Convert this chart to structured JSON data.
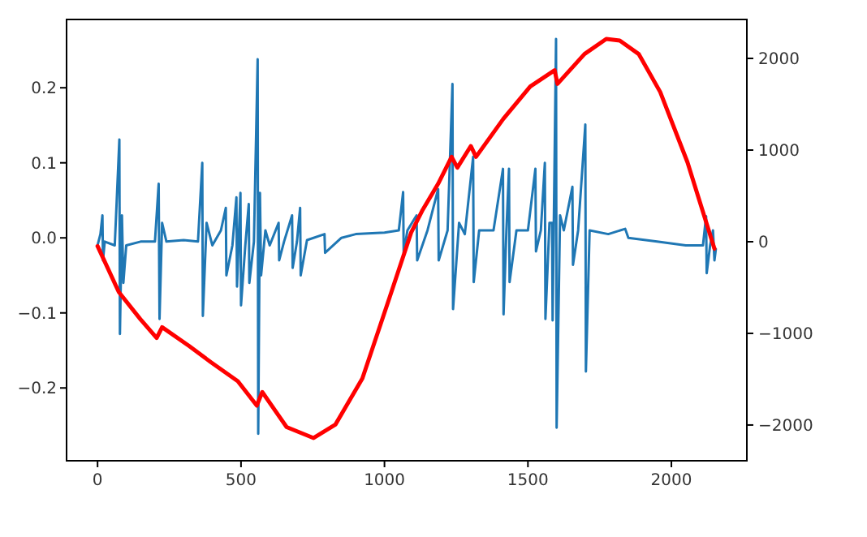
{
  "chart_data": {
    "type": "line",
    "xlim": [
      -108,
      2263
    ],
    "ylim": [
      -0.297,
      0.291
    ],
    "y2lim": [
      -2390,
      2425
    ],
    "xticks": [
      0,
      500,
      1000,
      1500,
      2000
    ],
    "yticks": [
      {
        "value": -0.2,
        "label": "−0.2"
      },
      {
        "value": -0.1,
        "label": "−0.1"
      },
      {
        "value": 0,
        "label": "0.0"
      },
      0.1,
      0.2
    ],
    "y2ticks": [
      {
        "value": -2000,
        "label": "−2000"
      },
      {
        "value": -1000,
        "label": "−1000"
      },
      0,
      1000,
      2000
    ],
    "series": [
      {
        "color": "#1f77b4",
        "axis": "y",
        "x": [
          0,
          10,
          17,
          19,
          25,
          60,
          76,
          78,
          85,
          90,
          100,
          150,
          200,
          213,
          216,
          225,
          240,
          300,
          350,
          365,
          367,
          380,
          400,
          430,
          447,
          449,
          470,
          484,
          486,
          498,
          500,
          515,
          527,
          529,
          545,
          558,
          560,
          566,
          570,
          585,
          600,
          631,
          633,
          650,
          678,
          680,
          695,
          706,
          708,
          730,
          791,
          793,
          850,
          900,
          1000,
          1050,
          1065,
          1067,
          1080,
          1112,
          1114,
          1150,
          1187,
          1189,
          1220,
          1237,
          1239,
          1260,
          1280,
          1309,
          1311,
          1330,
          1380,
          1413,
          1415,
          1425,
          1434,
          1436,
          1460,
          1500,
          1526,
          1528,
          1545,
          1559,
          1561,
          1575,
          1584,
          1586,
          1598,
          1600,
          1612,
          1625,
          1655,
          1657,
          1675,
          1700,
          1702,
          1715,
          1780,
          1839,
          1850,
          1950,
          2050,
          2110,
          2121,
          2123,
          2135,
          2145,
          2150,
          2155
        ],
        "values": [
          -0.01,
          0.005,
          0.03,
          -0.03,
          -0.005,
          -0.01,
          0.131,
          -0.128,
          0.03,
          -0.06,
          -0.01,
          -0.005,
          -0.005,
          0.072,
          -0.108,
          0.02,
          -0.005,
          -0.003,
          -0.005,
          0.1,
          -0.104,
          0.02,
          -0.01,
          0.01,
          0.04,
          -0.05,
          -0.01,
          0.054,
          -0.065,
          0.06,
          -0.09,
          -0.01,
          0.045,
          -0.06,
          -0.005,
          0.238,
          -0.261,
          0.06,
          -0.05,
          0.01,
          -0.01,
          0.02,
          -0.03,
          -0.005,
          0.03,
          -0.04,
          -0.005,
          0.04,
          -0.05,
          -0.003,
          0.005,
          -0.02,
          0,
          0.005,
          0.007,
          0.01,
          0.061,
          -0.02,
          0.01,
          0.03,
          -0.03,
          0.01,
          0.065,
          -0.03,
          0.01,
          0.205,
          -0.095,
          0.02,
          0.005,
          0.108,
          -0.059,
          0.01,
          0.01,
          0.092,
          -0.102,
          0.01,
          0.092,
          -0.059,
          0.01,
          0.01,
          0.092,
          -0.018,
          0.01,
          0.1,
          -0.108,
          0.02,
          0.02,
          -0.11,
          0.265,
          -0.253,
          0.03,
          0.01,
          0.068,
          -0.036,
          0.01,
          0.151,
          -0.178,
          0.01,
          0.005,
          0.012,
          0,
          -0.005,
          -0.01,
          -0.01,
          0.029,
          -0.047,
          -0.01,
          0.01,
          -0.03,
          -0.015
        ]
      },
      {
        "color": "#ff0000",
        "axis": "y2",
        "x": [
          0,
          74,
          149,
          206,
          225,
          319,
          395,
          489,
          555,
          574,
          659,
          753,
          829,
          923,
          1018,
          1093,
          1131,
          1187,
          1234,
          1254,
          1301,
          1319,
          1414,
          1508,
          1593,
          1603,
          1697,
          1773,
          1820,
          1886,
          1961,
          2056,
          2150
        ],
        "values": [
          -48,
          -549,
          -844,
          -1050,
          -933,
          -1138,
          -1315,
          -1522,
          -1788,
          -1640,
          -2023,
          -2142,
          -1995,
          -1492,
          -607,
          100,
          336,
          632,
          926,
          808,
          1044,
          926,
          1340,
          1694,
          1871,
          1722,
          2048,
          2212,
          2195,
          2048,
          1634,
          867,
          -76
        ]
      }
    ]
  }
}
